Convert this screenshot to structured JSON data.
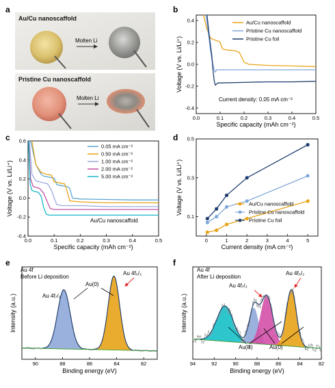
{
  "panels": {
    "a": {
      "label": "a",
      "photo_top_label": "Au/Cu nanoscaffold",
      "photo_top_arrow": "Molten Li",
      "photo_bottom_label": "Pristine Cu nanoscaffold",
      "photo_bottom_arrow": "Molten Li"
    },
    "b": {
      "label": "b",
      "annotation": "Current density:  0.05 mA cm⁻²"
    },
    "c": {
      "label": "c",
      "annotation": "Au/Cu nanoscaffold"
    },
    "d": {
      "label": "d"
    },
    "e": {
      "label": "e",
      "title1": "Au 4f",
      "title2": "Before Li deposition",
      "ann_au0": "Au(0)",
      "ann_72": "Au 4f₇/₂",
      "ann_52": "Au 4f₅/₂"
    },
    "f": {
      "label": "f",
      "title1": "Au 4f",
      "title2": "After Li deposition",
      "ann_72": "Au 4f₇/₂",
      "ann_52": "Au 4f₅/₂",
      "ann_au3": "Au(Ⅲ)",
      "ann_au0": "Au(0)"
    }
  },
  "chart_data": [
    {
      "id": "b",
      "type": "line",
      "xlabel": "Specific capacity (mAh cm⁻²)",
      "ylabel": "Voltage (V vs. Li/Li⁺)",
      "xlim": [
        0,
        0.5
      ],
      "ylim": [
        -0.45,
        0.45
      ],
      "xticks": [
        "0.0",
        "0.1",
        "0.2",
        "0.3",
        "0.4",
        "0.5"
      ],
      "yticks": [
        "-0.4",
        "-0.2",
        "0.0",
        "0.2",
        "0.4"
      ],
      "legend_position": "top-right",
      "series": [
        {
          "name": "Au/Cu nanoscaffold",
          "color": "#E8A317",
          "x": [
            0.03,
            0.045,
            0.055,
            0.06,
            0.068,
            0.08,
            0.095,
            0.1,
            0.11,
            0.13,
            0.16,
            0.18,
            0.2,
            0.22,
            0.3,
            0.4,
            0.5
          ],
          "y": [
            0.45,
            0.32,
            0.26,
            0.24,
            0.23,
            0.22,
            0.21,
            0.2,
            0.14,
            0.13,
            0.125,
            0.11,
            0.02,
            0.0,
            -0.01,
            -0.015,
            -0.02
          ]
        },
        {
          "name": "Pristine Cu nanoscaffold",
          "color": "#7FA7D9",
          "x": [
            0.04,
            0.05,
            0.06,
            0.065,
            0.07,
            0.075,
            0.08,
            0.085,
            0.1,
            0.2,
            0.3,
            0.4,
            0.5
          ],
          "y": [
            0.45,
            0.3,
            0.12,
            0.05,
            0.0,
            -0.05,
            -0.07,
            -0.05,
            -0.05,
            -0.05,
            -0.05,
            -0.05,
            -0.05
          ]
        },
        {
          "name": "Pristine Cu foil",
          "color": "#1F3E6E",
          "x": [
            0.045,
            0.055,
            0.065,
            0.07,
            0.075,
            0.08,
            0.085,
            0.09,
            0.1,
            0.2,
            0.3,
            0.4,
            0.5
          ],
          "y": [
            0.45,
            0.25,
            0.08,
            -0.05,
            -0.15,
            -0.19,
            -0.18,
            -0.17,
            -0.17,
            -0.165,
            -0.16,
            -0.16,
            -0.155
          ]
        }
      ]
    },
    {
      "id": "c",
      "type": "line",
      "xlabel": "Specific capacity (mAh cm⁻²)",
      "ylabel": "Voltage (V vs. Li/Li⁺)",
      "xlim": [
        0,
        0.5
      ],
      "ylim": [
        -0.4,
        0.6
      ],
      "xticks": [
        "0.0",
        "0.1",
        "0.2",
        "0.3",
        "0.4",
        "0.5"
      ],
      "yticks": [
        "-0.4",
        "-0.2",
        "0.0",
        "0.2",
        "0.4",
        "0.6"
      ],
      "legend_position": "top-right",
      "series": [
        {
          "name": "0.05 mA cm⁻²",
          "color": "#5DA5D5",
          "x": [
            0.01,
            0.03,
            0.05,
            0.06,
            0.08,
            0.1,
            0.11,
            0.13,
            0.15,
            0.16,
            0.17,
            0.2,
            0.3,
            0.4,
            0.5
          ],
          "y": [
            0.6,
            0.35,
            0.25,
            0.23,
            0.22,
            0.21,
            0.14,
            0.13,
            0.12,
            0.1,
            0.0,
            -0.01,
            -0.015,
            -0.02,
            -0.02
          ]
        },
        {
          "name": "0.50 mA cm⁻²",
          "color": "#E8A317",
          "x": [
            0.015,
            0.03,
            0.05,
            0.07,
            0.09,
            0.1,
            0.12,
            0.14,
            0.15,
            0.16,
            0.2,
            0.3,
            0.4,
            0.5
          ],
          "y": [
            0.6,
            0.35,
            0.27,
            0.25,
            0.24,
            0.17,
            0.16,
            0.15,
            0.07,
            -0.03,
            -0.04,
            -0.05,
            -0.05,
            -0.05
          ]
        },
        {
          "name": "1.00 mA cm⁻²",
          "color": "#9AA9DC",
          "x": [
            0.005,
            0.015,
            0.03,
            0.045,
            0.06,
            0.075,
            0.09,
            0.1,
            0.11,
            0.13,
            0.2,
            0.3,
            0.4,
            0.5
          ],
          "y": [
            0.6,
            0.25,
            0.18,
            0.17,
            0.16,
            0.15,
            0.08,
            0.0,
            -0.07,
            -0.08,
            -0.08,
            -0.09,
            -0.09,
            -0.09
          ]
        },
        {
          "name": "2.00 mA cm⁻²",
          "color": "#C24FA8",
          "x": [
            0.003,
            0.01,
            0.02,
            0.035,
            0.045,
            0.06,
            0.075,
            0.085,
            0.1,
            0.2,
            0.3,
            0.4,
            0.5
          ],
          "y": [
            0.6,
            0.2,
            0.12,
            0.11,
            0.1,
            0.05,
            -0.05,
            -0.11,
            -0.12,
            -0.12,
            -0.12,
            -0.12,
            -0.12
          ]
        },
        {
          "name": "5.00 mA cm⁻²",
          "color": "#17B8C8",
          "x": [
            0.002,
            0.008,
            0.015,
            0.025,
            0.04,
            0.05,
            0.06,
            0.07,
            0.08,
            0.1,
            0.2,
            0.3,
            0.4,
            0.5
          ],
          "y": [
            0.6,
            0.15,
            0.08,
            0.07,
            0.06,
            0.02,
            -0.1,
            -0.17,
            -0.18,
            -0.18,
            -0.18,
            -0.18,
            -0.18,
            -0.18
          ]
        }
      ]
    },
    {
      "id": "d",
      "type": "line",
      "xlabel": "Current density (mA cm⁻²)",
      "ylabel": "Voltage (V vs. Li/Li⁺)",
      "xlim": [
        -0.5,
        5.5
      ],
      "ylim": [
        0.0,
        0.5
      ],
      "xticks": [
        "0",
        "1",
        "2",
        "3",
        "4",
        "5"
      ],
      "yticks": [
        "0.1",
        "0.3",
        "0.5"
      ],
      "legend_position": "bottom-right",
      "series": [
        {
          "name": "Au/Cu nanoscaffold",
          "color": "#E8A317",
          "marker": "circle",
          "x": [
            0.05,
            0.5,
            1,
            2,
            5
          ],
          "y": [
            0.02,
            0.03,
            0.06,
            0.09,
            0.18
          ]
        },
        {
          "name": "Pristine Cu nanoscaffold",
          "color": "#7FA7D9",
          "marker": "circle",
          "x": [
            0.05,
            0.5,
            1,
            2,
            5
          ],
          "y": [
            0.07,
            0.1,
            0.15,
            0.18,
            0.31
          ]
        },
        {
          "name": "Pristine Cu foil",
          "color": "#1F3E6E",
          "marker": "circle",
          "x": [
            0.05,
            0.5,
            1,
            2,
            5
          ],
          "y": [
            0.09,
            0.14,
            0.21,
            0.3,
            0.47
          ]
        }
      ]
    },
    {
      "id": "e",
      "type": "line",
      "xlabel": "Binding energy (eV)",
      "ylabel": "Intensity (a.u.)",
      "xlim": [
        91,
        81
      ],
      "xticks": [
        "90",
        "88",
        "86",
        "84",
        "82"
      ],
      "peaks": [
        {
          "component": "Au(0) 4f7/2",
          "center": 87.9,
          "fwhm": 1.1,
          "height": 0.8,
          "color": "#8FA8DA"
        },
        {
          "component": "Au(0) 4f5/2",
          "center": 84.2,
          "fwhm": 1.0,
          "height": 1.0,
          "color": "#E8A317"
        }
      ]
    },
    {
      "id": "f",
      "type": "line",
      "xlabel": "Binding energy (eV)",
      "ylabel": "Intensity (a.u.)",
      "xlim": [
        94,
        82
      ],
      "xticks": [
        "94",
        "92",
        "90",
        "88",
        "86",
        "84",
        "82"
      ],
      "peaks": [
        {
          "component": "Au(Ⅲ) 4f7/2",
          "center": 91.0,
          "fwhm": 1.8,
          "height": 0.45,
          "color": "#17C0C8"
        },
        {
          "component": "Au(0) 4f7/2",
          "center": 88.3,
          "fwhm": 1.0,
          "height": 0.45,
          "color": "#8FA8DA"
        },
        {
          "component": "Au(Ⅲ) 4f5/2",
          "center": 87.1,
          "fwhm": 1.3,
          "height": 0.62,
          "color": "#D451A8"
        },
        {
          "component": "Au(0) 4f5/2",
          "center": 84.8,
          "fwhm": 1.1,
          "height": 0.72,
          "color": "#E8A317"
        }
      ]
    }
  ]
}
